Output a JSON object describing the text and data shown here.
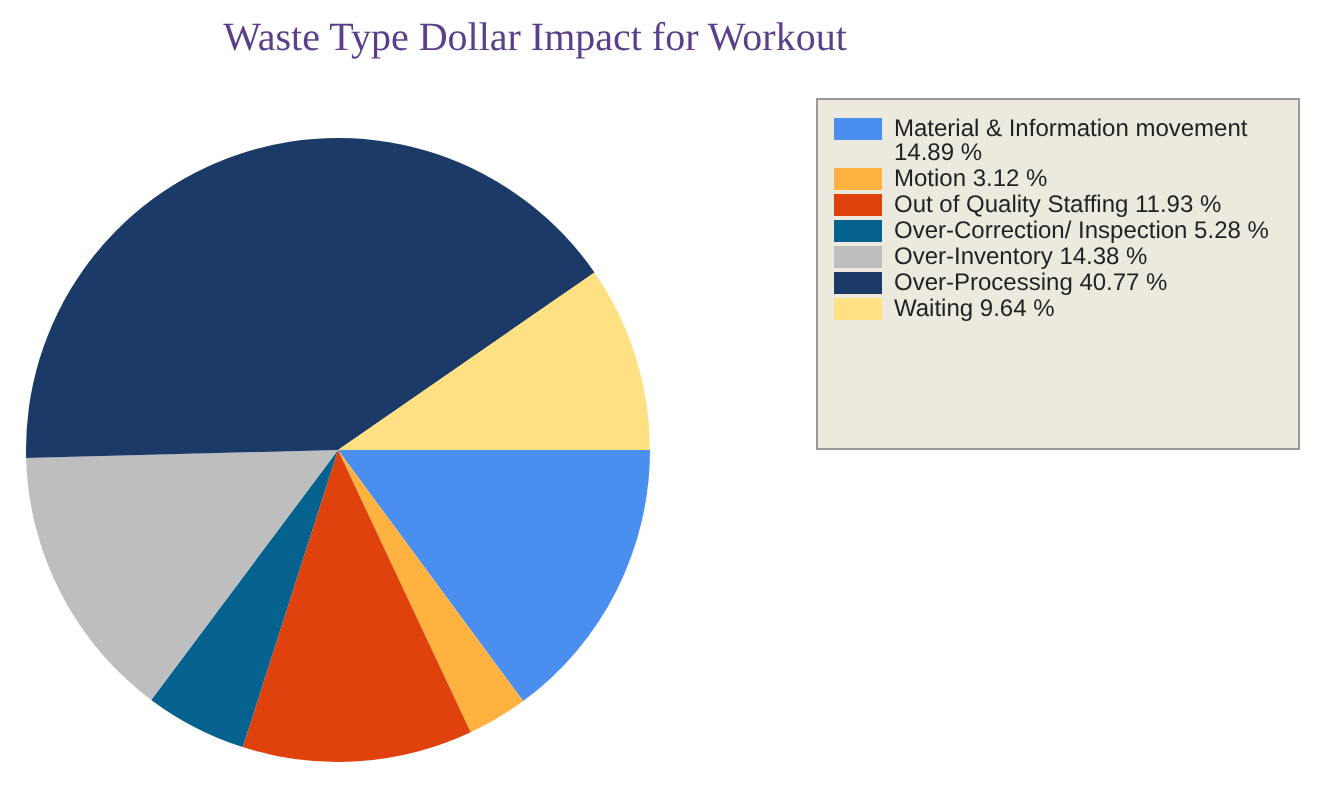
{
  "chart_data": {
    "type": "pie",
    "title": "Waste Type Dollar Impact for Workout",
    "categories": [
      "Material & Information movement 14.89 %",
      "Motion 3.12 %",
      "Out of Quality Staffing 11.93 %",
      "Over-Correction/ Inspection 5.28 %",
      "Over-Inventory 14.38 %",
      "Over-Processing 40.77 %",
      "Waiting 9.64 %"
    ],
    "values": [
      14.89,
      3.12,
      11.93,
      5.28,
      14.38,
      40.77,
      9.64
    ],
    "colors": [
      "#4a8ef0",
      "#ffb240",
      "#e0420e",
      "#05628e",
      "#bebebe",
      "#1b3a68",
      "#ffe082"
    ],
    "legend": "right"
  }
}
